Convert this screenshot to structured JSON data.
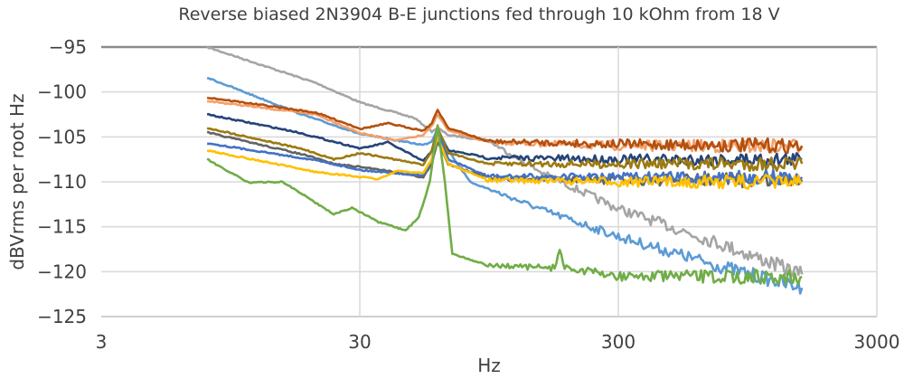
{
  "chart_data": {
    "type": "line",
    "title": "Reverse biased 2N3904 B-E junctions fed through 10 kOhm from 18 V",
    "xlabel": "Hz",
    "ylabel": "dBVrms per root Hz",
    "x_scale": "log",
    "xlim": [
      3,
      3000
    ],
    "ylim": [
      -125,
      -95
    ],
    "x_ticks": [
      "3",
      "30",
      "300",
      "3000"
    ],
    "y_ticks": [
      "-95",
      "-100",
      "-105",
      "-110",
      "-115",
      "-120",
      "-125"
    ],
    "grid": true,
    "legend": "none",
    "series": [
      {
        "color": "#a5a5a5",
        "points": [
          [
            7.7,
            -95
          ],
          [
            20.3,
            -99
          ],
          [
            30.3,
            -101.2
          ],
          [
            48.8,
            -102.9
          ],
          [
            57,
            -104.4
          ],
          [
            60,
            -104
          ],
          [
            66,
            -104.8
          ],
          [
            94,
            -105.4
          ],
          [
            152,
            -109
          ],
          [
            300,
            -113
          ],
          [
            760,
            -117
          ],
          [
            1540,
            -120.3
          ]
        ]
      },
      {
        "color": "#5b9bd5",
        "points": [
          [
            7.7,
            -98.4
          ],
          [
            18.3,
            -102.6
          ],
          [
            30.3,
            -104.7
          ],
          [
            52.8,
            -105.9
          ],
          [
            57,
            -105.5
          ],
          [
            60,
            -104
          ],
          [
            66,
            -106.5
          ],
          [
            80,
            -110
          ],
          [
            152,
            -113.1
          ],
          [
            300,
            -116.1
          ],
          [
            760,
            -119.5
          ],
          [
            1540,
            -121.8
          ]
        ]
      },
      {
        "color": "#f4a06a",
        "points": [
          [
            7.7,
            -101
          ],
          [
            20.3,
            -102.5
          ],
          [
            30.3,
            -104.6
          ],
          [
            41.6,
            -105.4
          ],
          [
            52.8,
            -104.8
          ],
          [
            57,
            -103.8
          ],
          [
            60,
            -102.5
          ],
          [
            66,
            -104.3
          ],
          [
            94,
            -105.6
          ],
          [
            300,
            -106
          ],
          [
            1540,
            -106
          ]
        ]
      },
      {
        "color": "#b4500f",
        "points": [
          [
            7.7,
            -100.6
          ],
          [
            20.3,
            -102.3
          ],
          [
            30.3,
            -104.1
          ],
          [
            38.5,
            -103.5
          ],
          [
            52.8,
            -104.3
          ],
          [
            57,
            -103.5
          ],
          [
            60,
            -102
          ],
          [
            66,
            -104
          ],
          [
            94,
            -105.5
          ],
          [
            300,
            -105.8
          ],
          [
            1540,
            -106
          ]
        ]
      },
      {
        "color": "#264478",
        "points": [
          [
            7.7,
            -102.5
          ],
          [
            16.7,
            -104.4
          ],
          [
            30.3,
            -106.3
          ],
          [
            38.5,
            -105.6
          ],
          [
            52.8,
            -107.7
          ],
          [
            57,
            -106.5
          ],
          [
            60,
            -104.5
          ],
          [
            66,
            -106.5
          ],
          [
            94,
            -107.3
          ],
          [
            300,
            -107.5
          ],
          [
            1540,
            -107.5
          ]
        ]
      },
      {
        "color": "#9c7a10",
        "points": [
          [
            7.7,
            -104
          ],
          [
            18.3,
            -106.4
          ],
          [
            23.8,
            -107.5
          ],
          [
            30.3,
            -106.8
          ],
          [
            52.8,
            -108.1
          ],
          [
            57,
            -106.5
          ],
          [
            60,
            -104
          ],
          [
            66,
            -106.8
          ],
          [
            94,
            -108
          ],
          [
            300,
            -108
          ],
          [
            1540,
            -108
          ]
        ]
      },
      {
        "color": "#636363",
        "points": [
          [
            7.7,
            -104.5
          ],
          [
            18.3,
            -107
          ],
          [
            23.8,
            -108
          ],
          [
            35.5,
            -108.6
          ],
          [
            52.8,
            -109.5
          ],
          [
            57,
            -108
          ],
          [
            60,
            -105.5
          ],
          [
            66,
            -108
          ],
          [
            94,
            -109.6
          ],
          [
            300,
            -109.8
          ],
          [
            1540,
            -109.8
          ]
        ]
      },
      {
        "color": "#4472c4",
        "points": [
          [
            7.7,
            -105.7
          ],
          [
            20.3,
            -107.6
          ],
          [
            30.3,
            -108.7
          ],
          [
            52.8,
            -109.3
          ],
          [
            57,
            -107.5
          ],
          [
            60,
            -104.5
          ],
          [
            66,
            -107.5
          ],
          [
            94,
            -109.4
          ],
          [
            300,
            -109.5
          ],
          [
            1540,
            -109.5
          ]
        ]
      },
      {
        "color": "#ffc000",
        "points": [
          [
            7.7,
            -106.5
          ],
          [
            20.3,
            -108.9
          ],
          [
            35.5,
            -109.7
          ],
          [
            41.6,
            -108.8
          ],
          [
            52.8,
            -109
          ],
          [
            57,
            -107.5
          ],
          [
            60,
            -105
          ],
          [
            66,
            -108
          ],
          [
            94,
            -109.8
          ],
          [
            300,
            -110
          ],
          [
            1540,
            -110
          ]
        ]
      },
      {
        "color": "#70ad47",
        "points": [
          [
            7.7,
            -107.5
          ],
          [
            11.2,
            -110.1
          ],
          [
            15.1,
            -110
          ],
          [
            23.8,
            -113.6
          ],
          [
            28,
            -112.9
          ],
          [
            35.5,
            -114.5
          ],
          [
            45.1,
            -115.4
          ],
          [
            50.7,
            -114
          ],
          [
            56,
            -110
          ],
          [
            60,
            -103.7
          ],
          [
            64,
            -110
          ],
          [
            68.4,
            -118
          ],
          [
            94,
            -119.3
          ],
          [
            170,
            -119.6
          ],
          [
            178,
            -117.3
          ],
          [
            186,
            -119.6
          ],
          [
            300,
            -120.5
          ],
          [
            1540,
            -120.6
          ]
        ]
      }
    ]
  }
}
